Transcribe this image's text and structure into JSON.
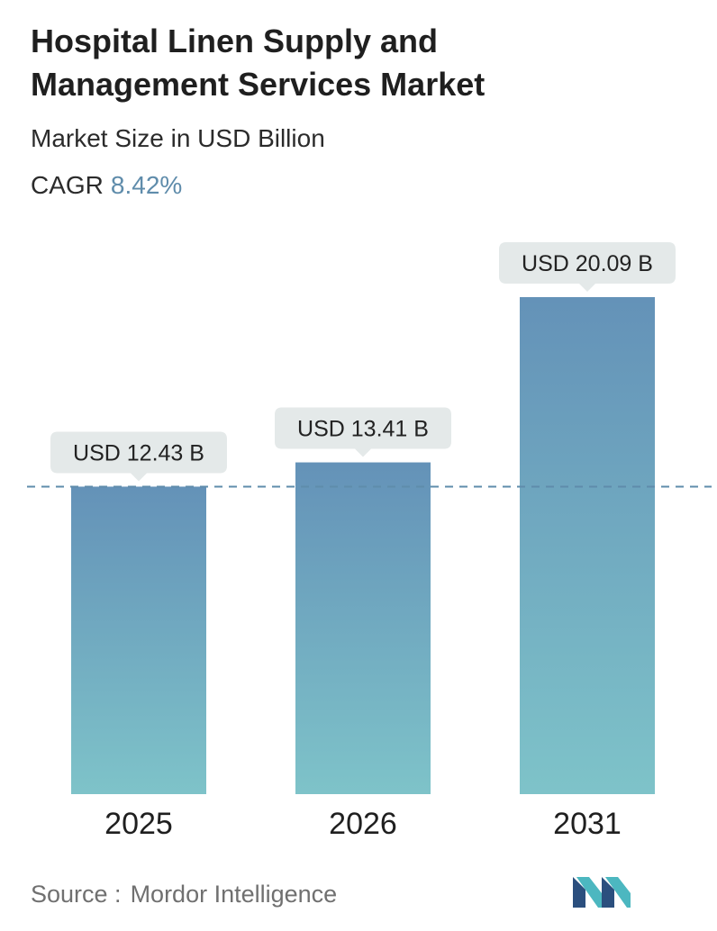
{
  "header": {
    "title_line1": "Hospital Linen Supply and",
    "title_line2": "Management Services Market",
    "subtitle": "Market Size in USD Billion",
    "cagr_label": "CAGR",
    "cagr_value": "8.42%"
  },
  "colors": {
    "bar_top": "#6492b8",
    "bar_bottom": "#7ec3c9",
    "label_bg": "#e4e9e9",
    "dashed_line": "#5f8cab",
    "cagr_value": "#5f8cab",
    "logo_dark": "#2b4f7e",
    "logo_light": "#4cb7c0"
  },
  "chart_data": {
    "type": "bar",
    "categories": [
      "2025",
      "2026",
      "2031"
    ],
    "values": [
      12.43,
      13.41,
      20.09
    ],
    "value_labels": [
      "USD 12.43 B",
      "USD 13.41 B",
      "USD 20.09 B"
    ],
    "ylim": [
      0,
      20.09
    ],
    "reference_line": 12.43,
    "grid": false,
    "legend": "none"
  },
  "footer": {
    "source_label": "Source :",
    "source_name": "Mordor Intelligence"
  }
}
